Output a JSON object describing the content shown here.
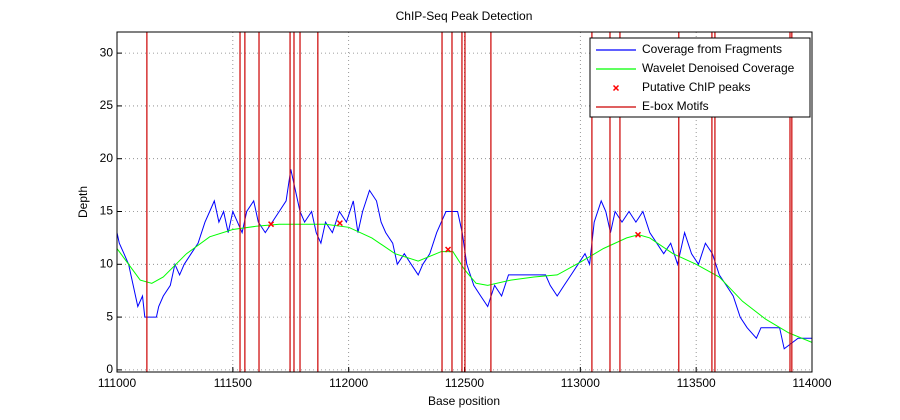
{
  "chart_data": {
    "type": "line",
    "title": "ChIP-Seq Peak Detection",
    "xlabel": "Base position",
    "ylabel": "Depth",
    "xlim": [
      111000,
      114000
    ],
    "ylim": [
      -0.2,
      32
    ],
    "xticks": [
      111000,
      111500,
      112000,
      112500,
      113000,
      113500,
      114000
    ],
    "yticks": [
      0,
      5,
      10,
      15,
      20,
      25,
      30
    ],
    "grid": true,
    "legend": "upper right",
    "series": [
      {
        "name": "Coverage from Fragments",
        "color": "#0000ff",
        "type": "line",
        "x": [
          111000,
          111010,
          111030,
          111050,
          111070,
          111090,
          111110,
          111120,
          111170,
          111180,
          111200,
          111230,
          111250,
          111270,
          111290,
          111320,
          111350,
          111380,
          111400,
          111420,
          111440,
          111460,
          111480,
          111500,
          111520,
          111540,
          111560,
          111590,
          111610,
          111640,
          111670,
          111700,
          111730,
          111750,
          111770,
          111790,
          111810,
          111840,
          111860,
          111880,
          111900,
          111930,
          111960,
          111990,
          112020,
          112040,
          112060,
          112090,
          112120,
          112140,
          112160,
          112190,
          112210,
          112240,
          112270,
          112300,
          112320,
          112350,
          112380,
          112400,
          112420,
          112470,
          112490,
          112510,
          112540,
          112570,
          112600,
          112630,
          112660,
          112690,
          112850,
          112870,
          112900,
          112930,
          112960,
          112990,
          113020,
          113040,
          113060,
          113090,
          113110,
          113130,
          113150,
          113180,
          113210,
          113240,
          113270,
          113300,
          113330,
          113360,
          113390,
          113420,
          113450,
          113480,
          113510,
          113540,
          113570,
          113600,
          113630,
          113660,
          113690,
          113720,
          113760,
          113780,
          113860,
          113880,
          113940,
          114000
        ],
        "values": [
          13,
          12,
          11,
          10,
          8,
          6,
          7,
          5,
          5,
          6,
          7,
          8,
          10,
          9,
          10,
          11,
          12,
          14,
          15,
          16,
          14,
          15,
          13,
          15,
          14,
          13,
          15,
          16,
          14,
          13,
          14,
          15,
          16,
          19,
          17,
          15,
          14,
          15,
          13,
          12,
          14,
          13,
          15,
          14,
          16,
          13,
          15,
          17,
          16,
          14,
          13,
          12,
          10,
          11,
          10,
          9,
          10,
          11,
          13,
          14,
          15,
          15,
          13,
          10,
          8,
          7,
          6,
          8,
          7,
          9,
          9,
          8,
          7,
          8,
          9,
          10,
          11,
          10,
          14,
          16,
          15,
          13,
          15,
          14,
          15,
          14,
          15,
          13,
          12,
          11,
          12,
          10,
          13,
          11,
          10,
          12,
          11,
          9,
          8,
          7,
          5,
          4,
          3,
          4,
          4,
          2,
          3,
          3
        ]
      },
      {
        "name": "Wavelet Denoised Coverage",
        "color": "#00ff00",
        "type": "line",
        "x": [
          111000,
          111100,
          111150,
          111200,
          111300,
          111400,
          111500,
          111600,
          111700,
          111800,
          111900,
          112000,
          112100,
          112200,
          112300,
          112400,
          112450,
          112500,
          112550,
          112600,
          112700,
          112800,
          112900,
          113000,
          113100,
          113200,
          113250,
          113300,
          113400,
          113500,
          113600,
          113700,
          113800,
          113900,
          114000
        ],
        "values": [
          11.5,
          8.5,
          8.2,
          8.8,
          11,
          12.6,
          13.3,
          13.6,
          13.8,
          13.8,
          13.8,
          13.5,
          12.5,
          11,
          10.3,
          11.2,
          11.2,
          9.5,
          8.2,
          8,
          8.5,
          8.8,
          9,
          10.2,
          11.5,
          12.5,
          12.8,
          12.5,
          11,
          10,
          8.8,
          6.5,
          4.8,
          3.5,
          2.6
        ]
      },
      {
        "name": "Putative ChIP peaks",
        "color": "#ff0000",
        "type": "scatter",
        "x": [
          111665,
          111962,
          112429,
          113249
        ],
        "values": [
          13.8,
          13.9,
          11.4,
          12.8
        ]
      },
      {
        "name": "E-box Motifs",
        "color": "#cc0000",
        "type": "vline",
        "x": [
          111129,
          111531,
          111552,
          111613,
          111747,
          111764,
          111790,
          111867,
          112403,
          112446,
          112489,
          112502,
          112614,
          113050,
          113128,
          113171,
          113425,
          113568,
          113581,
          113905,
          113913
        ]
      }
    ]
  }
}
